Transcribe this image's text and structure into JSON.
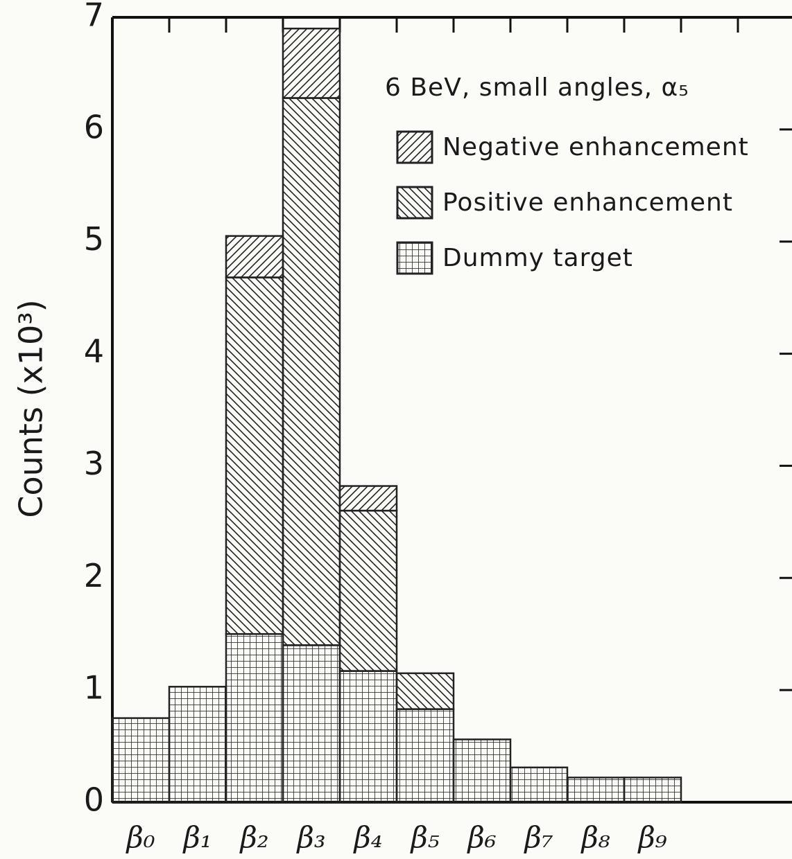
{
  "chart_data": {
    "type": "stacked_bar",
    "annotation": "6 BeV, small angles, α₅",
    "y_label": "Counts (x10³)",
    "categories": [
      "β₀",
      "β₁",
      "β₂",
      "β₃",
      "β₄",
      "β₅",
      "β₆",
      "β₇",
      "β₈",
      "β₉"
    ],
    "series": [
      {
        "name": "Dummy target",
        "color": "#222222",
        "hatch": "cross",
        "values": [
          0.75,
          1.03,
          1.5,
          1.4,
          1.17,
          0.83,
          0.56,
          0.31,
          0.22,
          0.22
        ]
      },
      {
        "name": "Positive enhancement",
        "color": "#222222",
        "hatch": "backslash",
        "values": [
          0,
          0,
          3.18,
          4.88,
          1.43,
          0.32,
          0,
          0,
          0,
          0
        ]
      },
      {
        "name": "Negative enhancement",
        "color": "#222222",
        "hatch": "slash",
        "values": [
          0,
          0,
          0.37,
          0.62,
          0.22,
          0,
          0,
          0,
          0,
          0
        ]
      }
    ],
    "ylim": [
      0,
      7
    ],
    "yticks": [
      0,
      1,
      2,
      3,
      4,
      5,
      6,
      7
    ]
  }
}
